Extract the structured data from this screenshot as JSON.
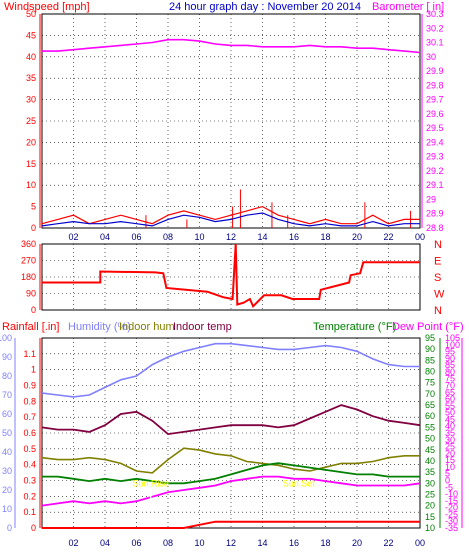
{
  "header": {
    "left_title": "Windspeed [mph]",
    "center_title": "24 hour graph day : November 20 2014",
    "right_title": "Barometer [ in]"
  },
  "colors": {
    "wind": "#ff0000",
    "wind_avg": "#0000cc",
    "barometer": "#ff00ff",
    "direction": "#ff0000",
    "rain": "#ff0000",
    "humidity": "#8080ff",
    "indoor_hum": "#808000",
    "indoor_temp": "#800040",
    "temperature": "#008000",
    "dew_point": "#ff00ff",
    "grid": "#000000",
    "sun_marker": "#ffff00"
  },
  "x_axis": {
    "tick_labels": [
      "02",
      "04",
      "06",
      "08",
      "10",
      "12",
      "14",
      "16",
      "18",
      "20",
      "22",
      "00"
    ]
  },
  "chart_data": [
    {
      "type": "line",
      "id": "wind_baro",
      "x": [
        0,
        1,
        2,
        3,
        4,
        5,
        6,
        7,
        8,
        9,
        10,
        11,
        12,
        13,
        14,
        15,
        16,
        17,
        18,
        19,
        20,
        21,
        22,
        23,
        24
      ],
      "left_axis": {
        "title": "Windspeed [mph]",
        "ylim": [
          0,
          50
        ],
        "ticks": [
          0,
          5,
          10,
          15,
          20,
          25,
          30,
          35,
          40,
          45,
          50
        ]
      },
      "right_axis": {
        "title": "Barometer [ in]",
        "ylim": [
          28.8,
          30.3
        ],
        "ticks": [
          28.8,
          28.9,
          29.0,
          29.1,
          29.2,
          29.3,
          29.4,
          29.5,
          29.6,
          29.7,
          29.8,
          29.9,
          30.0,
          30.1,
          30.2,
          30.3
        ],
        "tick_labels": [
          "28.8",
          "28.9",
          "29",
          "29.1",
          "29.2",
          "29.3",
          "29.4",
          "29.5",
          "29.6",
          "29.7",
          "29.8",
          "29.9",
          "30",
          "30.1",
          "30.2",
          "30.3"
        ]
      },
      "series": [
        {
          "key": "barometer",
          "axis": "right",
          "values": [
            30.04,
            30.04,
            30.05,
            30.06,
            30.07,
            30.08,
            30.09,
            30.1,
            30.12,
            30.12,
            30.11,
            30.09,
            30.08,
            30.08,
            30.07,
            30.07,
            30.07,
            30.08,
            30.07,
            30.07,
            30.06,
            30.06,
            30.05,
            30.04,
            30.03
          ]
        },
        {
          "key": "wind",
          "axis": "left",
          "values": [
            1,
            2,
            3,
            1,
            2,
            3,
            2,
            1,
            3,
            4,
            3,
            2,
            3,
            4,
            5,
            3,
            2,
            1,
            2,
            1,
            1,
            3,
            1,
            2,
            2
          ],
          "peaks": [
            [
              6.6,
              3
            ],
            [
              9.2,
              2
            ],
            [
              12.1,
              5
            ],
            [
              12.6,
              9
            ],
            [
              14.6,
              6
            ],
            [
              15.6,
              3
            ],
            [
              20.5,
              6
            ],
            [
              23.4,
              4
            ]
          ]
        },
        {
          "key": "wind_avg",
          "axis": "left",
          "values": [
            0.5,
            1,
            1.5,
            1,
            1,
            1.5,
            1,
            0.5,
            2,
            3,
            2.5,
            1.5,
            2,
            3,
            3.5,
            2,
            1,
            0.5,
            1,
            0.5,
            0.5,
            1.5,
            0.5,
            1,
            1
          ]
        }
      ]
    },
    {
      "type": "line",
      "id": "wind_direction",
      "left_axis": {
        "ylim": [
          0,
          360
        ],
        "ticks": [
          0,
          90,
          180,
          270,
          360
        ]
      },
      "right_axis": {
        "tick_labels": [
          "N",
          "W",
          "S",
          "E",
          "N"
        ]
      },
      "series": [
        {
          "key": "direction",
          "points": [
            [
              0,
              150
            ],
            [
              3.7,
              150
            ],
            [
              3.7,
              210
            ],
            [
              7.2,
              205
            ],
            [
              7.7,
              200
            ],
            [
              7.9,
              120
            ],
            [
              10.5,
              100
            ],
            [
              11.5,
              70
            ],
            [
              12.1,
              60
            ],
            [
              12.3,
              360
            ],
            [
              12.4,
              30
            ],
            [
              12.8,
              40
            ],
            [
              13.2,
              60
            ],
            [
              13.4,
              20
            ],
            [
              14.1,
              80
            ],
            [
              15.2,
              80
            ],
            [
              15.9,
              60
            ],
            [
              17.6,
              60
            ],
            [
              17.7,
              110
            ],
            [
              19.5,
              150
            ],
            [
              19.6,
              190
            ],
            [
              20.2,
              200
            ],
            [
              20.4,
              260
            ],
            [
              24,
              260
            ]
          ]
        }
      ]
    },
    {
      "type": "line",
      "id": "humidity_temp_rain",
      "legend": {
        "rain": "Rainfall [.in]",
        "humidity": "Humidity (%)",
        "indoor_hum": "Indoor hum",
        "indoor_temp": "Indoor temp",
        "temperature": "Temperature (°F)",
        "dew_point": "Dew Point (°F)"
      },
      "axes": {
        "humidity": {
          "ylim": [
            0,
            100
          ],
          "ticks": [
            0,
            10,
            20,
            30,
            40,
            50,
            60,
            70,
            80,
            90,
            100
          ]
        },
        "rain": {
          "ylim": [
            0,
            1.2
          ],
          "ticks": [
            0,
            0.1,
            0.2,
            0.3,
            0.4,
            0.5,
            0.6,
            0.7,
            0.8,
            0.9,
            1.0,
            1.1
          ],
          "tick_labels": [
            "0",
            "0.1",
            "0.2",
            "0.3",
            "0.4",
            "0.5",
            "0.6",
            "0.7",
            "0.8",
            "0.9",
            "1",
            "1.1"
          ]
        },
        "temperature": {
          "ylim": [
            10,
            95
          ],
          "ticks": [
            10,
            15,
            20,
            25,
            30,
            35,
            40,
            45,
            50,
            55,
            60,
            65,
            70,
            75,
            80,
            85,
            90,
            95
          ]
        },
        "dew_point": {
          "ylim": [
            -35,
            105
          ],
          "ticks": [
            -35,
            -30,
            -25,
            -20,
            -15,
            -10,
            -5,
            0,
            5,
            10,
            15,
            20,
            25,
            30,
            35,
            40,
            45,
            50,
            55,
            60,
            65,
            70,
            75,
            80,
            85,
            90,
            95,
            100,
            105
          ]
        }
      },
      "x": [
        0,
        1,
        2,
        3,
        4,
        5,
        6,
        7,
        8,
        9,
        10,
        11,
        12,
        13,
        14,
        15,
        16,
        17,
        18,
        19,
        20,
        21,
        22,
        23,
        24
      ],
      "series": [
        {
          "key": "humidity",
          "axis": "humidity",
          "values": [
            71,
            70,
            69,
            70,
            74,
            78,
            80,
            86,
            90,
            93,
            95,
            97,
            97,
            96,
            95,
            94,
            94,
            95,
            96,
            95,
            93,
            89,
            86,
            85,
            85
          ]
        },
        {
          "key": "indoor_temp",
          "axis": "temperature",
          "values": [
            55,
            54,
            54,
            53,
            56,
            61,
            62,
            58,
            52,
            53,
            54,
            55,
            56,
            56,
            56,
            55,
            56,
            59,
            62,
            65,
            63,
            60,
            58,
            57,
            56
          ]
        },
        {
          "key": "indoor_hum",
          "axis": "humidity",
          "values": [
            37,
            36,
            36,
            37,
            36,
            34,
            30,
            29,
            36,
            42,
            41,
            39,
            38,
            35,
            34,
            33,
            31,
            30,
            32,
            34,
            34,
            35,
            37,
            38,
            38
          ]
        },
        {
          "key": "temperature",
          "axis": "temperature",
          "values": [
            33,
            33,
            32,
            31,
            32,
            31,
            32,
            31,
            30,
            30,
            31,
            32,
            34,
            36,
            38,
            39,
            38,
            37,
            36,
            35,
            34,
            34,
            33,
            33,
            33
          ]
        },
        {
          "key": "dew_point",
          "axis": "temperature",
          "values": [
            20,
            21,
            22,
            21,
            22,
            21,
            22,
            24,
            26,
            27,
            28,
            29,
            31,
            32,
            33,
            33,
            32,
            32,
            31,
            30,
            29,
            29,
            29,
            29,
            30
          ]
        },
        {
          "key": "rain",
          "axis": "rain",
          "values": [
            0,
            0,
            0,
            0,
            0,
            0,
            0,
            0,
            0,
            0,
            0.02,
            0.04,
            0.04,
            0.04,
            0.04,
            0.04,
            0.04,
            0.04,
            0.04,
            0.04,
            0.04,
            0.04,
            0.04,
            0.04,
            0.04
          ]
        }
      ],
      "annotations": [
        {
          "label": "Sun Rise",
          "x": 6.9
        },
        {
          "label": "Sun Set",
          "x": 16.3
        }
      ]
    }
  ]
}
